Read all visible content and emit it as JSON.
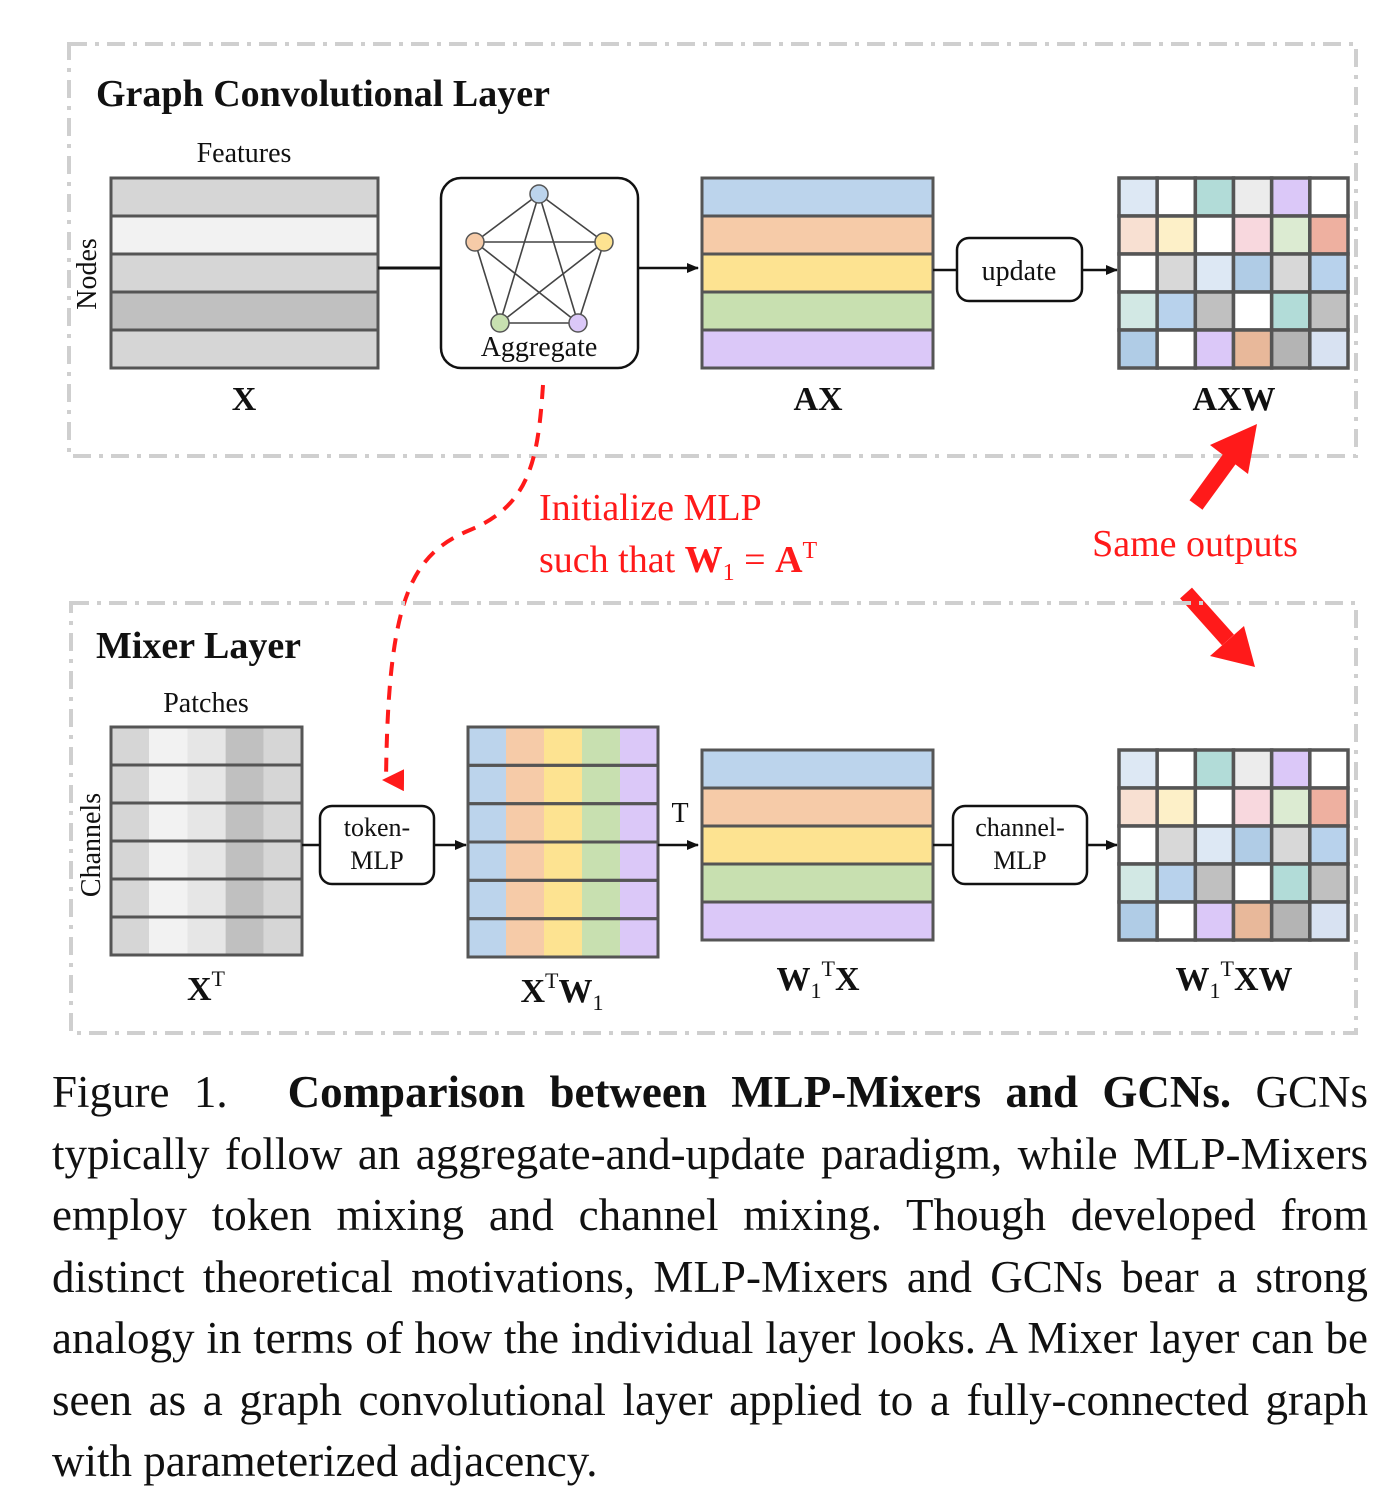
{
  "top_panel": {
    "title": "Graph Convolutional Layer",
    "features_label": "Features",
    "nodes_label": "Nodes",
    "aggregate_label": "Aggregate",
    "update_label": "update",
    "x_label": "X",
    "ax_label": "AX",
    "axw_label": "AXW"
  },
  "bottom_panel": {
    "title": "Mixer Layer",
    "patches_label": "Patches",
    "channels_label": "Channels",
    "token_mlp_line1": "token-",
    "token_mlp_line2": "MLP",
    "channel_mlp_line1": "channel-",
    "channel_mlp_line2": "MLP",
    "transpose_label": "T",
    "xt_label": {
      "base": "X",
      "sup": "T"
    },
    "xtw1_label": {
      "x": "X",
      "t": "T",
      "w": "W",
      "sub": "1"
    },
    "w1tx_label": {
      "w": "W",
      "sub": "1",
      "t": "T",
      "x": "X"
    },
    "w1txw_label": {
      "w": "W",
      "sub": "1",
      "t": "T",
      "xw": "XW"
    }
  },
  "annotations": {
    "init_line1": "Initialize MLP",
    "init_line2_prefix": "such that ",
    "init_w": "W",
    "init_sub": "1",
    "init_eq": " = ",
    "init_a": "A",
    "init_sup": "T",
    "same_outputs": "Same outputs",
    "annotation_color": "#ff1a1a"
  },
  "colors": {
    "blue": "#bcd4ec",
    "orange": "#f6cba8",
    "yellow": "#fde391",
    "green": "#c8e0b0",
    "purple": "#dbc8f8",
    "gray_light": "#e6e6e6",
    "gray_lighter": "#f2f2f2",
    "gray_mid": "#d6d6d6",
    "gray_dark": "#c0c0c0",
    "node_blue": "#bcd4ec",
    "node_orange": "#f6cba8",
    "node_yellow": "#fde391",
    "node_green": "#c8e0b0",
    "node_purple": "#dbc8f8"
  },
  "caption": {
    "label": "Figure 1.",
    "bold": "Comparison between MLP-Mixers and GCNs.",
    "text": "GCNs typically follow an aggregate-and-update paradigm, while MLP-Mixers employ token mixing and channel mixing.  Though developed from distinct theoretical motivations, MLP-Mixers and GCNs bear a strong analogy in terms of how the individual layer looks.  A Mixer layer can be seen as a graph convolutional layer applied to a fully-connected graph with parameterized adjacency."
  }
}
